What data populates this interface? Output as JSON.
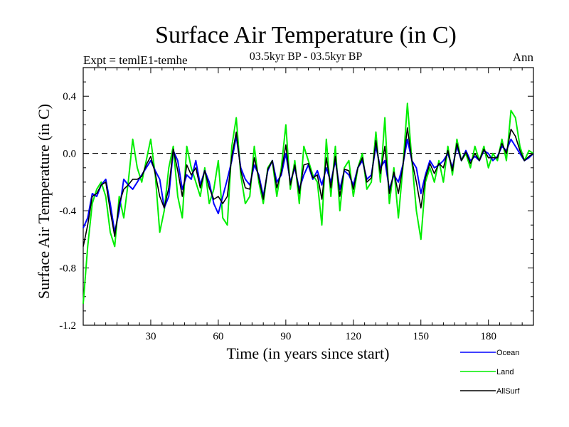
{
  "chart_data": {
    "type": "line",
    "title": "Surface Air Temperature (in C)",
    "subtitle": "03.5kyr BP - 03.5kyr BP",
    "experiment_label": "Expt = temlE1-temhe",
    "season_label": "Ann",
    "xlabel": "Time (in years since start)",
    "ylabel": "Surface Air Temperature (in C)",
    "xlim": [
      0,
      200
    ],
    "ylim": [
      -1.2,
      0.6
    ],
    "xticks": [
      30,
      60,
      90,
      120,
      150,
      180
    ],
    "xtick_labels": [
      "30",
      "60",
      "90",
      "120",
      "150",
      "180"
    ],
    "yticks": [
      -1.2,
      -0.8,
      -0.4,
      0.0,
      0.4
    ],
    "ytick_labels": [
      "-1.2",
      "-0.8",
      "-0.4",
      "0.0",
      "0.4"
    ],
    "reference_line": 0.0,
    "legend_position": "bottom-right, below plot",
    "series": [
      {
        "name": "Ocean",
        "color": "#0000ff",
        "x": [
          0,
          2,
          4,
          6,
          8,
          10,
          12,
          14,
          16,
          18,
          20,
          22,
          24,
          26,
          28,
          30,
          32,
          34,
          36,
          38,
          40,
          42,
          44,
          46,
          48,
          50,
          52,
          54,
          56,
          58,
          60,
          62,
          64,
          66,
          68,
          70,
          72,
          74,
          76,
          78,
          80,
          82,
          84,
          86,
          88,
          90,
          92,
          94,
          96,
          98,
          100,
          102,
          104,
          106,
          108,
          110,
          112,
          114,
          116,
          118,
          120,
          122,
          124,
          126,
          128,
          130,
          132,
          134,
          136,
          138,
          140,
          142,
          144,
          146,
          148,
          150,
          152,
          154,
          156,
          158,
          160,
          162,
          164,
          166,
          168,
          170,
          172,
          174,
          176,
          178,
          180,
          182,
          184,
          186,
          188,
          190,
          192,
          194,
          196,
          198,
          200
        ],
        "values": [
          -0.52,
          -0.45,
          -0.28,
          -0.3,
          -0.22,
          -0.18,
          -0.35,
          -0.55,
          -0.4,
          -0.18,
          -0.22,
          -0.25,
          -0.2,
          -0.15,
          -0.1,
          -0.05,
          -0.12,
          -0.18,
          -0.38,
          -0.3,
          0.02,
          -0.05,
          -0.25,
          -0.15,
          -0.18,
          -0.05,
          -0.22,
          -0.12,
          -0.2,
          -0.35,
          -0.42,
          -0.3,
          -0.18,
          -0.05,
          0.12,
          -0.1,
          -0.18,
          -0.22,
          -0.08,
          -0.15,
          -0.3,
          -0.12,
          -0.05,
          -0.2,
          -0.15,
          0.0,
          -0.2,
          -0.1,
          -0.25,
          -0.15,
          -0.08,
          -0.18,
          -0.12,
          -0.22,
          -0.1,
          -0.2,
          -0.05,
          -0.25,
          -0.12,
          -0.15,
          -0.22,
          -0.1,
          -0.05,
          -0.18,
          -0.15,
          0.05,
          -0.1,
          -0.05,
          -0.25,
          -0.15,
          -0.2,
          -0.08,
          0.1,
          -0.05,
          -0.1,
          -0.28,
          -0.15,
          -0.05,
          -0.1,
          -0.08,
          -0.05,
          0.0,
          -0.1,
          0.05,
          -0.05,
          0.02,
          -0.05,
          -0.02,
          -0.05,
          0.02,
          0.0,
          -0.05,
          -0.02,
          0.05,
          0.02,
          0.1,
          0.05,
          0.0,
          -0.05,
          -0.03,
          0.0
        ]
      },
      {
        "name": "Land",
        "color": "#00ee00",
        "x": [
          0,
          2,
          4,
          6,
          8,
          10,
          12,
          14,
          16,
          18,
          20,
          22,
          24,
          26,
          28,
          30,
          32,
          34,
          36,
          38,
          40,
          42,
          44,
          46,
          48,
          50,
          52,
          54,
          56,
          58,
          60,
          62,
          64,
          66,
          68,
          70,
          72,
          74,
          76,
          78,
          80,
          82,
          84,
          86,
          88,
          90,
          92,
          94,
          96,
          98,
          100,
          102,
          104,
          106,
          108,
          110,
          112,
          114,
          116,
          118,
          120,
          122,
          124,
          126,
          128,
          130,
          132,
          134,
          136,
          138,
          140,
          142,
          144,
          146,
          148,
          150,
          152,
          154,
          156,
          158,
          160,
          162,
          164,
          166,
          168,
          170,
          172,
          174,
          176,
          178,
          180,
          182,
          184,
          186,
          188,
          190,
          192,
          194,
          196,
          198,
          200
        ],
        "values": [
          -1.05,
          -0.65,
          -0.35,
          -0.25,
          -0.2,
          -0.3,
          -0.55,
          -0.65,
          -0.3,
          -0.45,
          -0.2,
          0.1,
          -0.1,
          -0.2,
          -0.05,
          0.1,
          -0.15,
          -0.55,
          -0.4,
          -0.1,
          0.05,
          -0.3,
          -0.45,
          0.05,
          -0.1,
          -0.2,
          -0.3,
          -0.1,
          -0.35,
          -0.25,
          -0.05,
          -0.45,
          -0.5,
          0.05,
          0.25,
          -0.15,
          -0.35,
          -0.3,
          0.05,
          -0.2,
          -0.35,
          -0.1,
          -0.05,
          -0.3,
          -0.1,
          0.2,
          -0.25,
          -0.05,
          -0.35,
          0.05,
          -0.05,
          -0.15,
          -0.2,
          -0.5,
          0.1,
          -0.3,
          0.05,
          -0.4,
          -0.1,
          -0.05,
          -0.3,
          -0.1,
          0.0,
          -0.25,
          -0.2,
          0.15,
          -0.2,
          0.25,
          -0.35,
          -0.1,
          -0.45,
          -0.1,
          0.35,
          -0.05,
          -0.4,
          -0.6,
          -0.2,
          -0.1,
          -0.2,
          -0.05,
          -0.2,
          0.05,
          -0.15,
          0.1,
          -0.05,
          0.0,
          -0.1,
          0.05,
          -0.05,
          0.05,
          -0.1,
          0.0,
          -0.05,
          0.1,
          -0.05,
          0.3,
          0.25,
          0.05,
          -0.05,
          0.02,
          0.0
        ]
      },
      {
        "name": "AllSurf",
        "color": "#000000",
        "x": [
          0,
          2,
          4,
          6,
          8,
          10,
          12,
          14,
          16,
          18,
          20,
          22,
          24,
          26,
          28,
          30,
          32,
          34,
          36,
          38,
          40,
          42,
          44,
          46,
          48,
          50,
          52,
          54,
          56,
          58,
          60,
          62,
          64,
          66,
          68,
          70,
          72,
          74,
          76,
          78,
          80,
          82,
          84,
          86,
          88,
          90,
          92,
          94,
          96,
          98,
          100,
          102,
          104,
          106,
          108,
          110,
          112,
          114,
          116,
          118,
          120,
          122,
          124,
          126,
          128,
          130,
          132,
          134,
          136,
          138,
          140,
          142,
          144,
          146,
          148,
          150,
          152,
          154,
          156,
          158,
          160,
          162,
          164,
          166,
          168,
          170,
          172,
          174,
          176,
          178,
          180,
          182,
          184,
          186,
          188,
          190,
          192,
          194,
          196,
          198,
          200
        ],
        "values": [
          -0.65,
          -0.5,
          -0.3,
          -0.28,
          -0.22,
          -0.2,
          -0.4,
          -0.58,
          -0.35,
          -0.25,
          -0.22,
          -0.18,
          -0.18,
          -0.16,
          -0.08,
          -0.02,
          -0.14,
          -0.3,
          -0.38,
          -0.24,
          0.03,
          -0.12,
          -0.3,
          -0.08,
          -0.15,
          -0.1,
          -0.24,
          -0.12,
          -0.24,
          -0.32,
          -0.3,
          -0.35,
          -0.3,
          -0.02,
          0.15,
          -0.12,
          -0.24,
          -0.25,
          -0.03,
          -0.17,
          -0.32,
          -0.11,
          -0.05,
          -0.24,
          -0.13,
          0.06,
          -0.22,
          -0.08,
          -0.28,
          -0.08,
          -0.07,
          -0.17,
          -0.15,
          -0.32,
          -0.03,
          -0.24,
          -0.02,
          -0.3,
          -0.11,
          -0.12,
          -0.25,
          -0.1,
          -0.03,
          -0.2,
          -0.17,
          0.09,
          -0.14,
          0.05,
          -0.28,
          -0.13,
          -0.28,
          -0.09,
          0.18,
          -0.05,
          -0.2,
          -0.38,
          -0.17,
          -0.07,
          -0.14,
          -0.07,
          -0.1,
          0.02,
          -0.12,
          0.07,
          -0.05,
          0.01,
          -0.07,
          0.0,
          -0.05,
          0.03,
          -0.03,
          -0.03,
          -0.03,
          0.07,
          0.0,
          0.17,
          0.12,
          0.02,
          -0.05,
          -0.02,
          0.0
        ]
      }
    ]
  }
}
